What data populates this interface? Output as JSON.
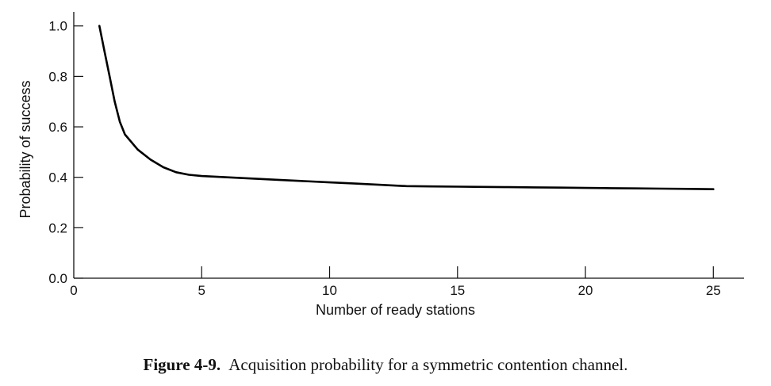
{
  "chart_data": {
    "type": "line",
    "title": "",
    "xlabel": "Number of ready stations",
    "ylabel": "Probability of success",
    "xlim": [
      0,
      26.2
    ],
    "ylim": [
      0,
      1.04
    ],
    "xticks": [
      0,
      5,
      10,
      15,
      20,
      25
    ],
    "yticks": [
      0.0,
      0.2,
      0.4,
      0.6,
      0.8,
      1.0
    ],
    "xtick_labels": [
      "0",
      "5",
      "10",
      "15",
      "20",
      "25"
    ],
    "ytick_labels": [
      "0.0",
      "0.2",
      "0.4",
      "0.6",
      "0.8",
      "1.0"
    ],
    "grid": false,
    "series": [
      {
        "x": [
          1,
          1.2,
          1.4,
          1.6,
          1.8,
          2,
          2.5,
          3,
          3.5,
          4,
          4.5,
          5,
          6,
          7,
          8,
          9,
          10,
          11,
          12,
          13,
          14,
          15,
          16,
          17,
          18,
          19,
          20,
          21,
          22,
          23,
          24,
          25
        ],
        "values": [
          1.0,
          0.9,
          0.8,
          0.7,
          0.62,
          0.57,
          0.51,
          0.47,
          0.44,
          0.42,
          0.41,
          0.405,
          0.4,
          0.395,
          0.39,
          0.385,
          0.38,
          0.375,
          0.37,
          0.365,
          0.364,
          0.363,
          0.362,
          0.361,
          0.36,
          0.359,
          0.358,
          0.357,
          0.356,
          0.355,
          0.354,
          0.353
        ]
      }
    ]
  },
  "caption": {
    "number": "Figure 4-9.",
    "text": "Acquisition probability for a symmetric contention channel."
  }
}
